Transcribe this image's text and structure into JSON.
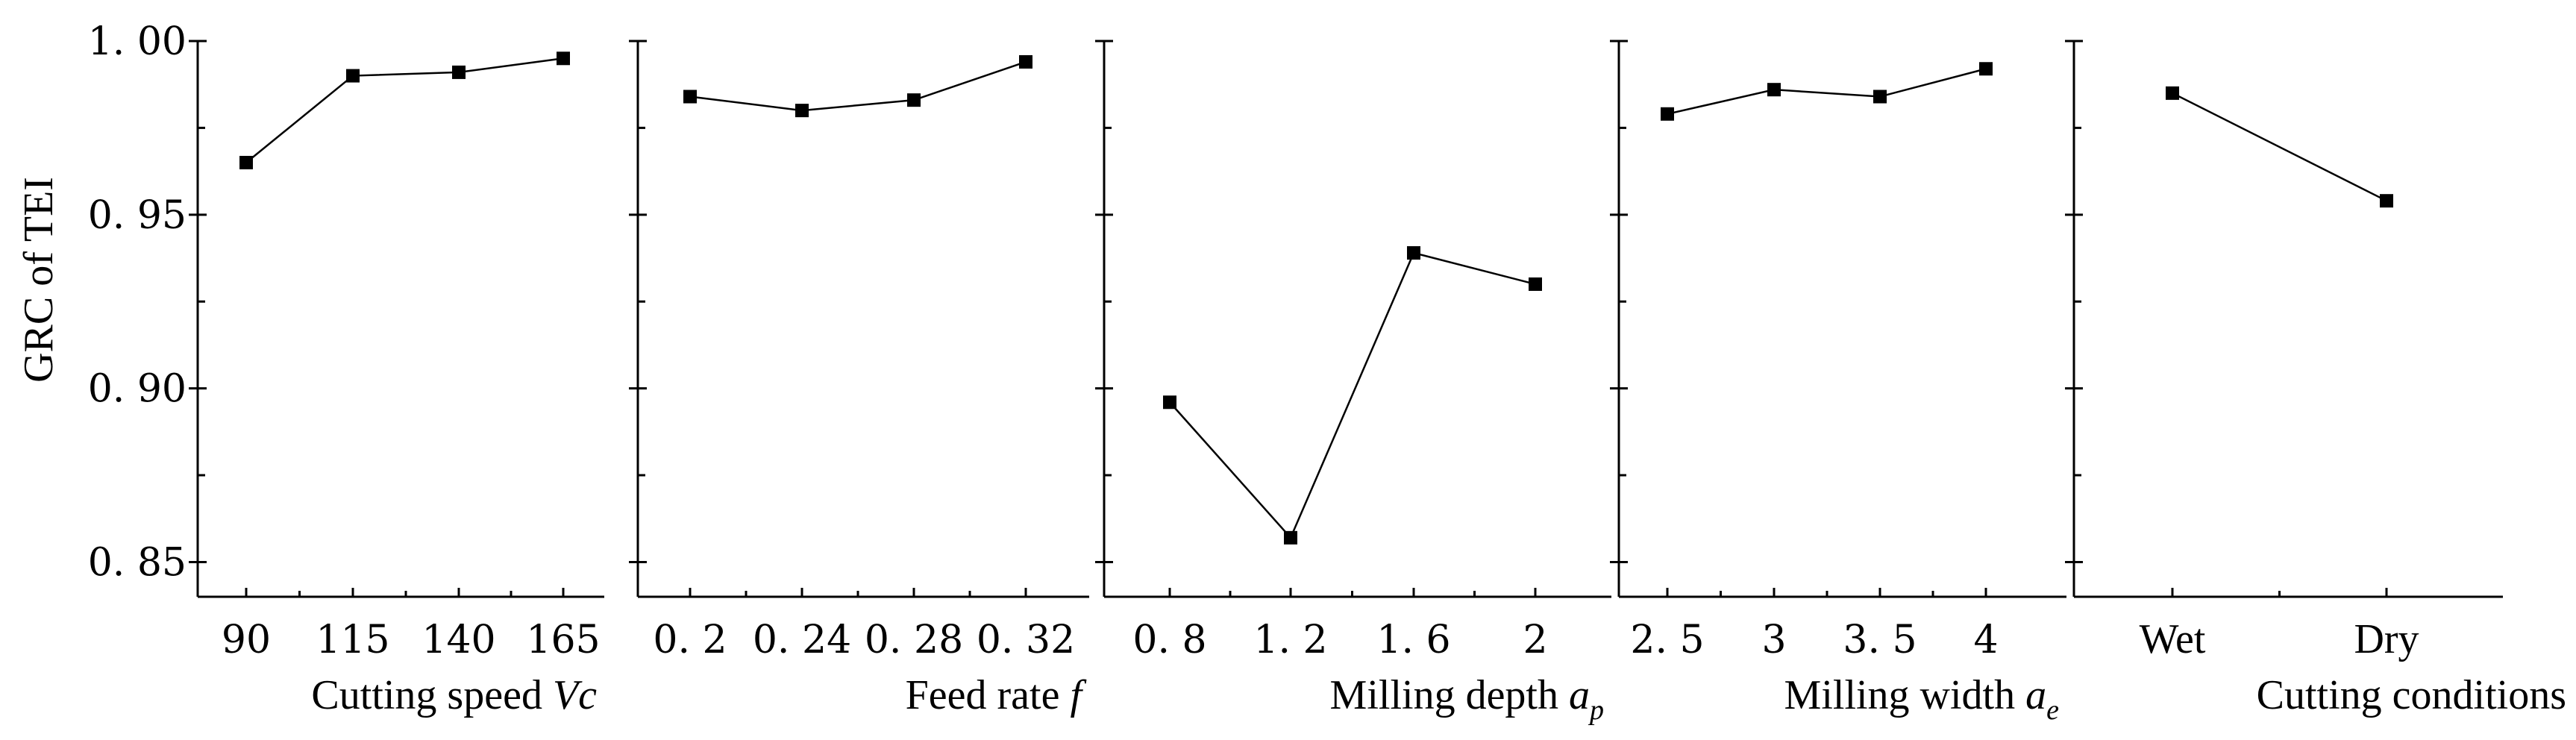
{
  "chart_data": {
    "type": "line",
    "ylabel": "GRC of TEI",
    "ylim": [
      0.84,
      1.0
    ],
    "yticks": [
      0.85,
      0.9,
      0.95,
      1.0
    ],
    "ytick_labels": [
      "0. 85",
      "0. 90",
      "0. 95",
      "1. 00"
    ],
    "series_color": "#000000",
    "marker": "square",
    "panels": [
      {
        "name": "cutting-speed",
        "xlabel": "Cutting speed ",
        "xlabel_var": "Vc",
        "xlabel_sub": "",
        "categories": [
          "90",
          "115",
          "140",
          "165"
        ],
        "values": [
          0.965,
          0.99,
          0.991,
          0.995
        ]
      },
      {
        "name": "feed-rate",
        "xlabel": "Feed rate ",
        "xlabel_var": "f",
        "xlabel_sub": "",
        "categories": [
          "0. 2",
          "0. 24",
          "0. 28",
          "0. 32"
        ],
        "values": [
          0.984,
          0.98,
          0.983,
          0.994
        ]
      },
      {
        "name": "milling-depth",
        "xlabel": "Milling depth ",
        "xlabel_var": "a",
        "xlabel_sub": "p",
        "categories": [
          "0. 8",
          "1. 2",
          "1. 6",
          "2"
        ],
        "values": [
          0.896,
          0.857,
          0.939,
          0.93
        ]
      },
      {
        "name": "milling-width",
        "xlabel": "Milling width ",
        "xlabel_var": "a",
        "xlabel_sub": "e",
        "categories": [
          "2. 5",
          "3",
          "3. 5",
          "4"
        ],
        "values": [
          0.979,
          0.986,
          0.984,
          0.992
        ]
      },
      {
        "name": "cutting-conditions",
        "xlabel": "Cutting conditions",
        "xlabel_var": "",
        "xlabel_sub": "",
        "categories": [
          "Wet",
          "Dry"
        ],
        "values": [
          0.985,
          0.954
        ]
      }
    ]
  }
}
